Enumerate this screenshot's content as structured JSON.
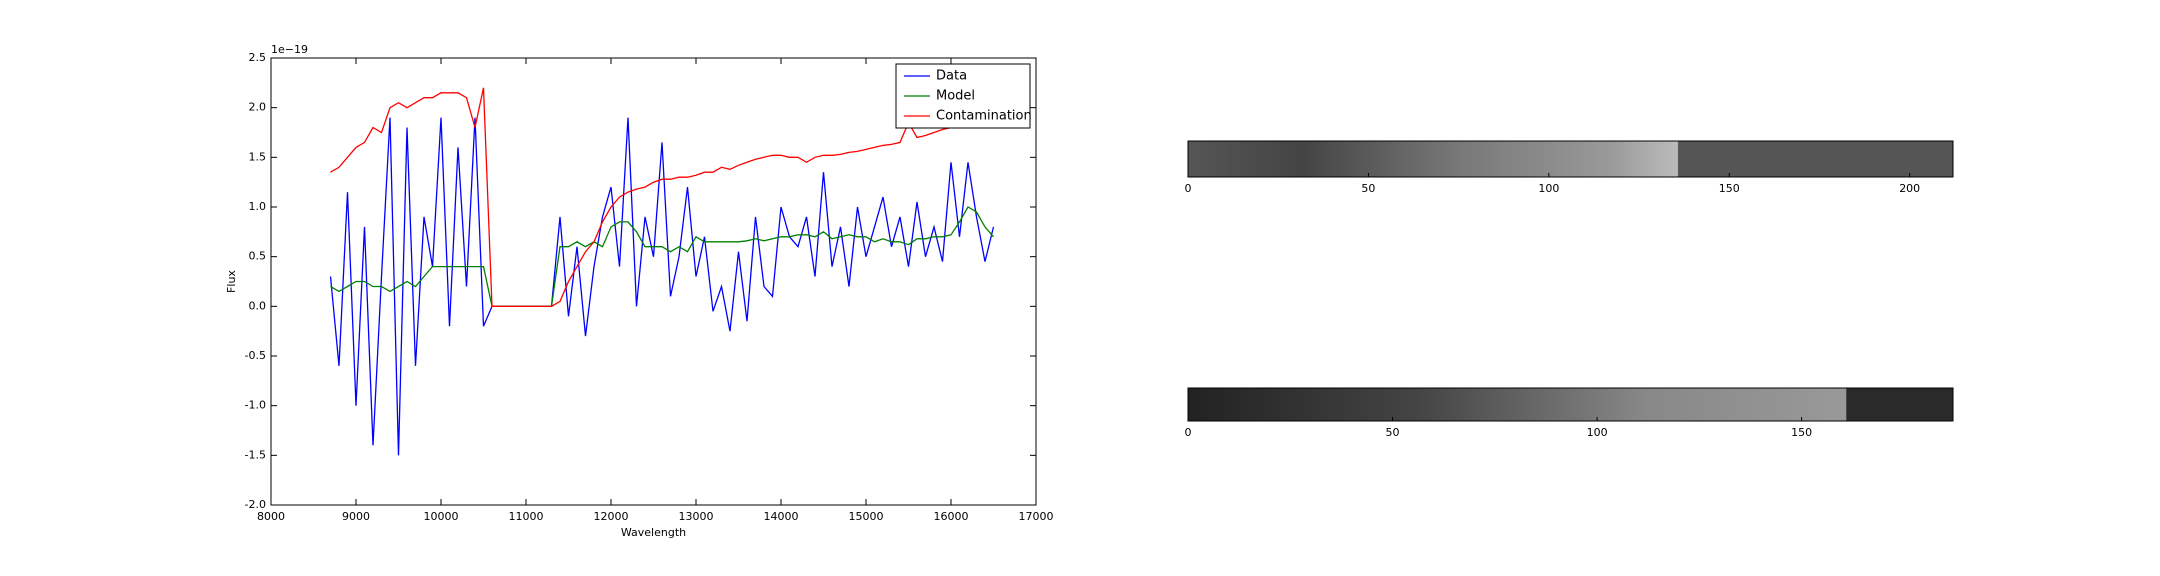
{
  "chart_data": [
    {
      "type": "line",
      "offset_label": "1e−19",
      "xlabel": "Wavelength",
      "ylabel": "Flux",
      "x": [
        8700,
        8800,
        8900,
        9000,
        9100,
        9200,
        9300,
        9400,
        9500,
        9600,
        9700,
        9800,
        9900,
        10000,
        10100,
        10200,
        10300,
        10400,
        10500,
        10600,
        10700,
        10800,
        10900,
        11000,
        11100,
        11200,
        11300,
        11400,
        11500,
        11600,
        11700,
        11800,
        11900,
        12000,
        12100,
        12200,
        12300,
        12400,
        12500,
        12600,
        12700,
        12800,
        12900,
        13000,
        13100,
        13200,
        13300,
        13400,
        13500,
        13600,
        13700,
        13800,
        13900,
        14000,
        14100,
        14200,
        14300,
        14400,
        14500,
        14600,
        14700,
        14800,
        14900,
        15000,
        15100,
        15200,
        15300,
        15400,
        15500,
        15600,
        15700,
        15800,
        15900,
        16000,
        16100,
        16200,
        16300,
        16400,
        16500
      ],
      "series": [
        {
          "name": "Data",
          "color": "#0000ff",
          "values": [
            0.3,
            -0.6,
            1.15,
            -1.0,
            0.8,
            -1.4,
            0.3,
            1.9,
            -1.5,
            1.8,
            -0.6,
            0.9,
            0.4,
            1.9,
            -0.2,
            1.6,
            0.2,
            1.9,
            -0.2,
            0,
            0,
            0,
            0,
            0,
            0,
            0,
            0,
            0.9,
            -0.1,
            0.6,
            -0.3,
            0.4,
            0.9,
            1.2,
            0.4,
            1.9,
            0,
            0.9,
            0.5,
            1.65,
            0.1,
            0.5,
            1.2,
            0.3,
            0.7,
            -0.05,
            0.2,
            -0.25,
            0.55,
            -0.15,
            0.9,
            0.2,
            0.1,
            1.0,
            0.7,
            0.6,
            0.9,
            0.3,
            1.35,
            0.4,
            0.8,
            0.2,
            1.0,
            0.5,
            0.8,
            1.1,
            0.6,
            0.9,
            0.4,
            1.05,
            0.5,
            0.8,
            0.45,
            1.45,
            0.7,
            1.45,
            0.9,
            0.45,
            0.8
          ]
        },
        {
          "name": "Model",
          "color": "#008000",
          "values": [
            0.2,
            0.15,
            0.2,
            0.25,
            0.25,
            0.2,
            0.2,
            0.15,
            0.2,
            0.25,
            0.2,
            0.3,
            0.4,
            0.4,
            0.4,
            0.4,
            0.4,
            0.4,
            0.4,
            0,
            0,
            0,
            0,
            0,
            0,
            0,
            0,
            0.6,
            0.6,
            0.65,
            0.6,
            0.65,
            0.6,
            0.8,
            0.85,
            0.85,
            0.75,
            0.6,
            0.6,
            0.6,
            0.55,
            0.6,
            0.55,
            0.7,
            0.65,
            0.65,
            0.65,
            0.65,
            0.65,
            0.66,
            0.68,
            0.66,
            0.68,
            0.7,
            0.7,
            0.72,
            0.72,
            0.7,
            0.75,
            0.68,
            0.7,
            0.72,
            0.7,
            0.7,
            0.65,
            0.68,
            0.65,
            0.65,
            0.62,
            0.68,
            0.68,
            0.7,
            0.7,
            0.72,
            0.85,
            1.0,
            0.95,
            0.8,
            0.7
          ]
        },
        {
          "name": "Contamination",
          "color": "#ff0000",
          "values": [
            1.35,
            1.4,
            1.5,
            1.6,
            1.65,
            1.8,
            1.75,
            2.0,
            2.05,
            2.0,
            2.05,
            2.1,
            2.1,
            2.15,
            2.15,
            2.15,
            2.1,
            1.8,
            2.2,
            0,
            0,
            0,
            0,
            0,
            0,
            0,
            0,
            0.05,
            0.25,
            0.4,
            0.55,
            0.65,
            0.85,
            1.0,
            1.1,
            1.15,
            1.18,
            1.2,
            1.25,
            1.28,
            1.28,
            1.3,
            1.3,
            1.32,
            1.35,
            1.35,
            1.4,
            1.38,
            1.42,
            1.45,
            1.48,
            1.5,
            1.52,
            1.52,
            1.5,
            1.5,
            1.45,
            1.5,
            1.52,
            1.52,
            1.53,
            1.55,
            1.56,
            1.58,
            1.6,
            1.62,
            1.63,
            1.65,
            1.85,
            1.7,
            1.72,
            1.75,
            1.78,
            1.8,
            1.95,
            2.0,
            2.05,
            2.1,
            2.15
          ]
        }
      ],
      "xlim": [
        8000,
        17000
      ],
      "xticks": [
        8000,
        9000,
        10000,
        11000,
        12000,
        13000,
        14000,
        15000,
        16000,
        17000
      ],
      "ylim": [
        -2,
        2.5
      ],
      "yticks": [
        {
          "value": -2,
          "label": "-2.0"
        },
        {
          "value": -1.5,
          "label": "-1.5"
        },
        {
          "value": -1,
          "label": "-1.0"
        },
        {
          "value": -0.5,
          "label": "-0.5"
        },
        {
          "value": 0,
          "label": "0.0"
        },
        {
          "value": 0.5,
          "label": "0.5"
        },
        {
          "value": 1,
          "label": "1.0"
        },
        {
          "value": 1.5,
          "label": "1.5"
        },
        {
          "value": 2,
          "label": "2.0"
        },
        {
          "value": 2.5,
          "label": "2.5"
        }
      ],
      "legend": "upper right"
    },
    {
      "type": "image",
      "xlim": [
        0,
        212
      ],
      "xticks": [
        0,
        50,
        100,
        150,
        200
      ]
    },
    {
      "type": "image",
      "xlim": [
        0,
        187
      ],
      "xticks": [
        0,
        50,
        100,
        150
      ]
    }
  ]
}
